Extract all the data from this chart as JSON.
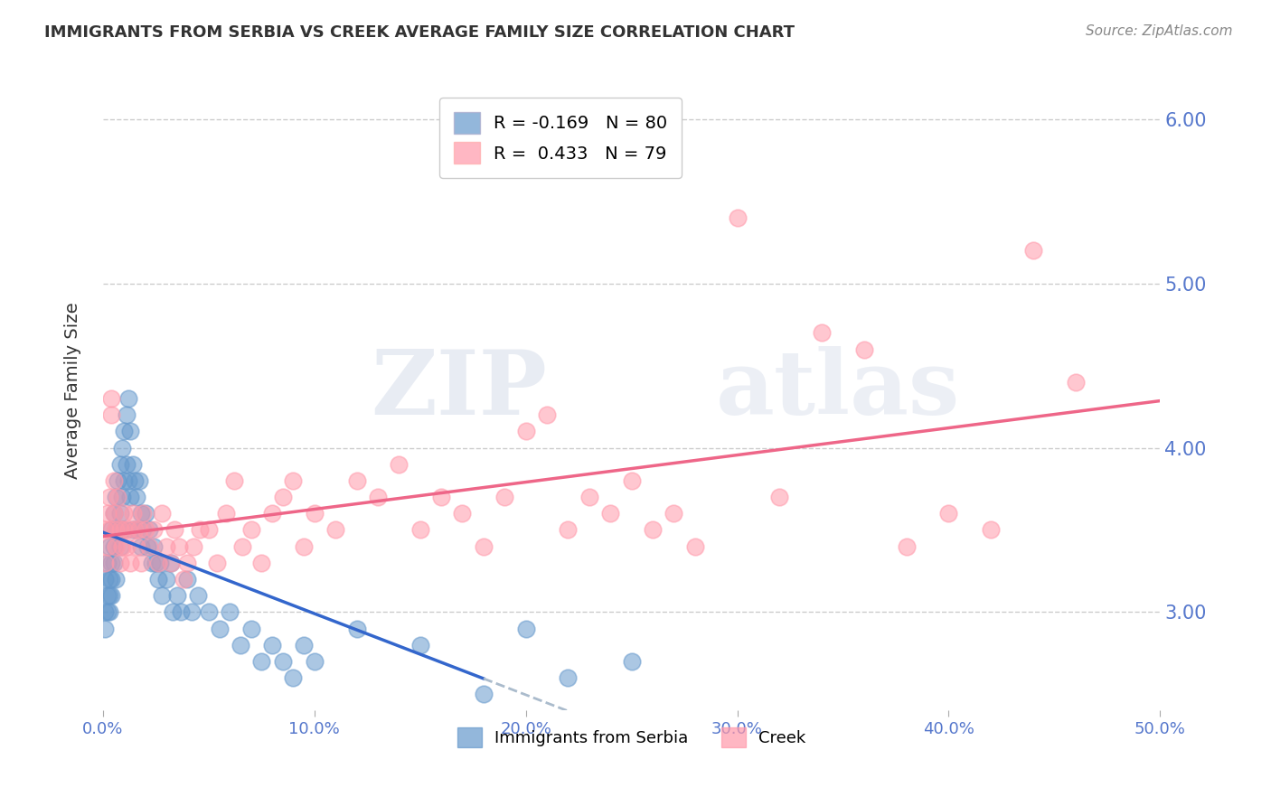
{
  "title": "IMMIGRANTS FROM SERBIA VS CREEK AVERAGE FAMILY SIZE CORRELATION CHART",
  "source": "Source: ZipAtlas.com",
  "ylabel": "Average Family Size",
  "xlabel": "",
  "xlim": [
    0.0,
    0.5
  ],
  "ylim": [
    2.4,
    6.3
  ],
  "yticks": [
    3.0,
    4.0,
    5.0,
    6.0
  ],
  "xticks": [
    0.0,
    0.1,
    0.2,
    0.3,
    0.4,
    0.5
  ],
  "xtick_labels": [
    "0.0%",
    "10.0%",
    "20.0%",
    "30.0%",
    "40.0%",
    "50.0%"
  ],
  "serbia_color": "#6699cc",
  "creek_color": "#ff99aa",
  "serbia_R": -0.169,
  "serbia_N": 80,
  "creek_R": 0.433,
  "creek_N": 79,
  "serbia_points_x": [
    0.001,
    0.001,
    0.001,
    0.002,
    0.002,
    0.002,
    0.003,
    0.003,
    0.003,
    0.003,
    0.004,
    0.004,
    0.004,
    0.004,
    0.005,
    0.005,
    0.005,
    0.006,
    0.006,
    0.006,
    0.007,
    0.007,
    0.008,
    0.008,
    0.008,
    0.009,
    0.009,
    0.009,
    0.01,
    0.01,
    0.01,
    0.011,
    0.011,
    0.012,
    0.012,
    0.013,
    0.013,
    0.014,
    0.014,
    0.015,
    0.015,
    0.016,
    0.017,
    0.018,
    0.018,
    0.019,
    0.02,
    0.021,
    0.022,
    0.023,
    0.024,
    0.025,
    0.026,
    0.027,
    0.028,
    0.03,
    0.032,
    0.033,
    0.035,
    0.037,
    0.04,
    0.042,
    0.045,
    0.05,
    0.055,
    0.06,
    0.065,
    0.07,
    0.075,
    0.08,
    0.085,
    0.09,
    0.095,
    0.1,
    0.12,
    0.15,
    0.18,
    0.2,
    0.22,
    0.25
  ],
  "serbia_points_y": [
    3.2,
    3.0,
    2.9,
    3.3,
    3.1,
    3.0,
    3.4,
    3.2,
    3.1,
    3.0,
    3.5,
    3.3,
    3.2,
    3.1,
    3.6,
    3.4,
    3.3,
    3.7,
    3.5,
    3.2,
    3.8,
    3.5,
    3.9,
    3.6,
    3.4,
    4.0,
    3.7,
    3.5,
    4.1,
    3.8,
    3.5,
    4.2,
    3.9,
    4.3,
    3.8,
    4.1,
    3.7,
    3.9,
    3.5,
    3.8,
    3.5,
    3.7,
    3.8,
    3.6,
    3.4,
    3.5,
    3.6,
    3.4,
    3.5,
    3.3,
    3.4,
    3.3,
    3.2,
    3.3,
    3.1,
    3.2,
    3.3,
    3.0,
    3.1,
    3.0,
    3.2,
    3.0,
    3.1,
    3.0,
    2.9,
    3.0,
    2.8,
    2.9,
    2.7,
    2.8,
    2.7,
    2.6,
    2.8,
    2.7,
    2.9,
    2.8,
    2.5,
    2.9,
    2.6,
    2.7
  ],
  "creek_points_x": [
    0.001,
    0.001,
    0.002,
    0.002,
    0.003,
    0.003,
    0.004,
    0.004,
    0.005,
    0.005,
    0.006,
    0.006,
    0.007,
    0.008,
    0.008,
    0.009,
    0.01,
    0.01,
    0.011,
    0.012,
    0.013,
    0.014,
    0.015,
    0.016,
    0.017,
    0.018,
    0.019,
    0.02,
    0.022,
    0.024,
    0.026,
    0.028,
    0.03,
    0.032,
    0.034,
    0.036,
    0.038,
    0.04,
    0.043,
    0.046,
    0.05,
    0.054,
    0.058,
    0.062,
    0.066,
    0.07,
    0.075,
    0.08,
    0.085,
    0.09,
    0.095,
    0.1,
    0.11,
    0.12,
    0.13,
    0.14,
    0.15,
    0.16,
    0.17,
    0.18,
    0.19,
    0.2,
    0.21,
    0.22,
    0.23,
    0.24,
    0.25,
    0.26,
    0.27,
    0.28,
    0.3,
    0.32,
    0.34,
    0.36,
    0.38,
    0.4,
    0.42,
    0.44,
    0.46
  ],
  "creek_points_y": [
    3.5,
    3.3,
    3.6,
    3.4,
    3.7,
    3.5,
    4.3,
    4.2,
    3.8,
    3.6,
    3.5,
    3.4,
    3.7,
    3.5,
    3.3,
    3.4,
    3.6,
    3.5,
    3.4,
    3.5,
    3.3,
    3.6,
    3.5,
    3.4,
    3.5,
    3.3,
    3.6,
    3.5,
    3.4,
    3.5,
    3.3,
    3.6,
    3.4,
    3.3,
    3.5,
    3.4,
    3.2,
    3.3,
    3.4,
    3.5,
    3.5,
    3.3,
    3.6,
    3.8,
    3.4,
    3.5,
    3.3,
    3.6,
    3.7,
    3.8,
    3.4,
    3.6,
    3.5,
    3.8,
    3.7,
    3.9,
    3.5,
    3.7,
    3.6,
    3.4,
    3.7,
    4.1,
    4.2,
    3.5,
    3.7,
    3.6,
    3.8,
    3.5,
    3.6,
    3.4,
    5.4,
    3.7,
    4.7,
    4.6,
    3.4,
    3.6,
    3.5,
    5.2,
    4.4
  ],
  "watermark_zip": "ZIP",
  "watermark_atlas": "atlas",
  "background_color": "#ffffff",
  "grid_color": "#cccccc",
  "title_color": "#333333",
  "ytick_color": "#5577cc",
  "serbia_line_color": "#3366cc",
  "creek_line_color": "#ee6688",
  "dashed_line_color": "#aabbcc"
}
